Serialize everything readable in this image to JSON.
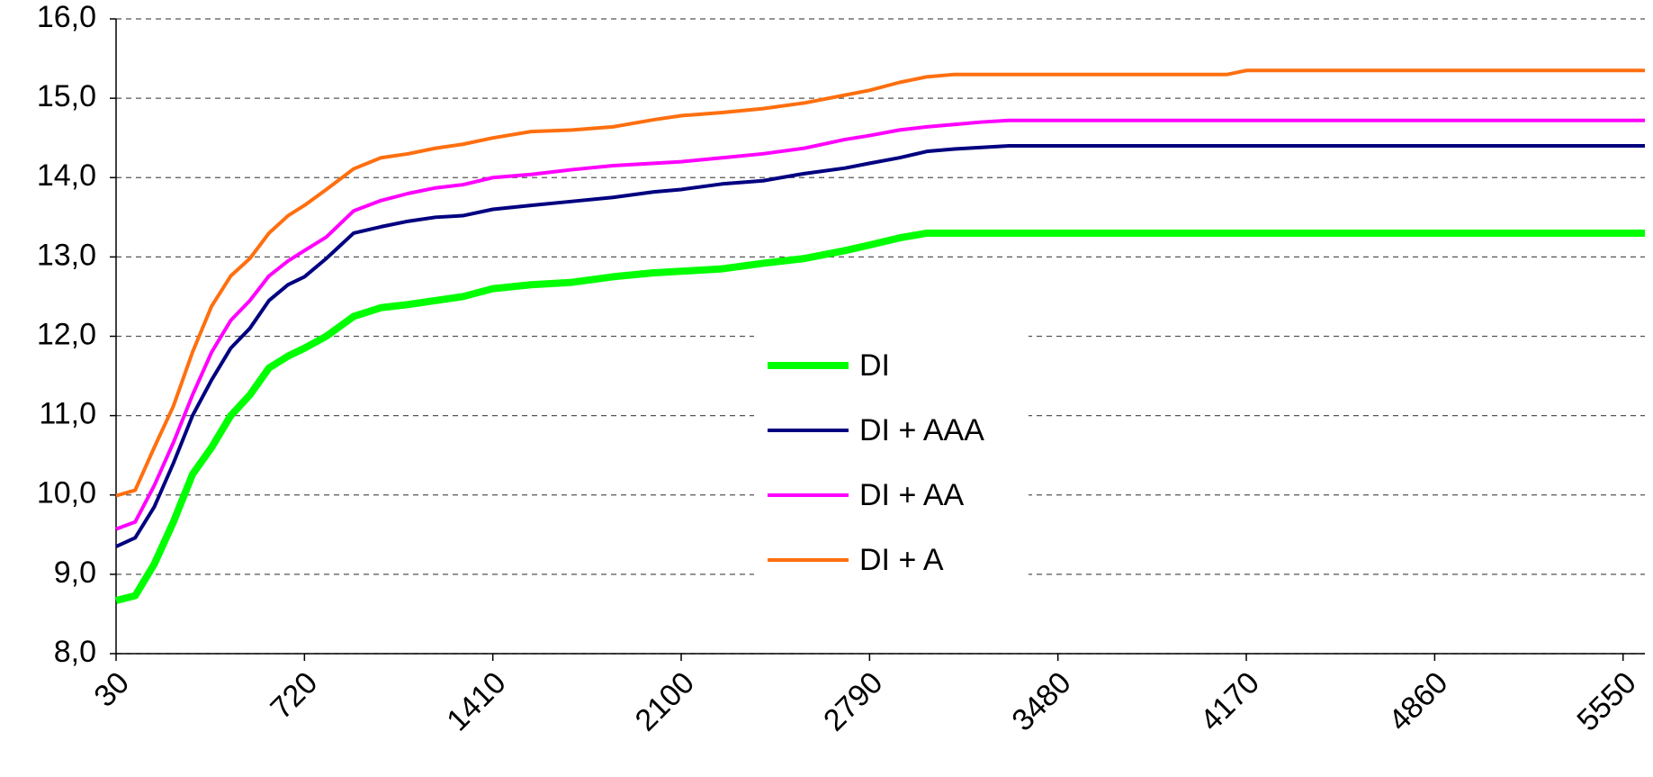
{
  "chart_data": {
    "type": "line",
    "x": [
      30,
      100,
      170,
      240,
      310,
      380,
      450,
      520,
      590,
      660,
      720,
      800,
      900,
      1000,
      1100,
      1200,
      1300,
      1410,
      1550,
      1700,
      1850,
      2000,
      2100,
      2250,
      2400,
      2550,
      2700,
      2790,
      2900,
      3000,
      3100,
      3200,
      3300,
      3480,
      4100,
      4170,
      5630
    ],
    "series": [
      {
        "name": "DI",
        "color": "#00ff00",
        "width": 8,
        "values": [
          8.67,
          8.73,
          9.13,
          9.66,
          10.26,
          10.6,
          11.0,
          11.26,
          11.6,
          11.75,
          11.85,
          12.0,
          12.25,
          12.36,
          12.4,
          12.45,
          12.5,
          12.6,
          12.65,
          12.68,
          12.75,
          12.8,
          12.82,
          12.85,
          12.92,
          12.98,
          13.08,
          13.15,
          13.24,
          13.3,
          13.3,
          13.3,
          13.3,
          13.3,
          13.3,
          13.3,
          13.3
        ]
      },
      {
        "name": "DI + AAA",
        "color": "#000080",
        "width": 4,
        "values": [
          9.35,
          9.46,
          9.85,
          10.4,
          11.0,
          11.45,
          11.85,
          12.1,
          12.45,
          12.65,
          12.75,
          12.98,
          13.3,
          13.38,
          13.45,
          13.5,
          13.52,
          13.6,
          13.65,
          13.7,
          13.75,
          13.82,
          13.85,
          13.92,
          13.96,
          14.05,
          14.12,
          14.18,
          14.25,
          14.33,
          14.36,
          14.38,
          14.4,
          14.4,
          14.4,
          14.4,
          14.4
        ]
      },
      {
        "name": "DI + AA",
        "color": "#ff00ff",
        "width": 4,
        "values": [
          9.57,
          9.66,
          10.12,
          10.66,
          11.26,
          11.8,
          12.2,
          12.45,
          12.76,
          12.95,
          13.08,
          13.25,
          13.58,
          13.71,
          13.8,
          13.87,
          13.91,
          14.0,
          14.04,
          14.1,
          14.15,
          14.18,
          14.2,
          14.25,
          14.3,
          14.37,
          14.48,
          14.53,
          14.6,
          14.64,
          14.67,
          14.7,
          14.72,
          14.72,
          14.72,
          14.72,
          14.72
        ]
      },
      {
        "name": "DI + A",
        "color": "#ff6f0f",
        "width": 4,
        "values": [
          9.99,
          10.06,
          10.6,
          11.12,
          11.8,
          12.38,
          12.76,
          12.98,
          13.3,
          13.52,
          13.65,
          13.85,
          14.11,
          14.25,
          14.3,
          14.37,
          14.42,
          14.5,
          14.58,
          14.6,
          14.64,
          14.73,
          14.78,
          14.82,
          14.87,
          14.94,
          15.04,
          15.1,
          15.2,
          15.27,
          15.3,
          15.3,
          15.3,
          15.3,
          15.3,
          15.35,
          15.35
        ]
      }
    ],
    "xlim": [
      30,
      5630
    ],
    "xticks": [
      30,
      720,
      1410,
      2100,
      2790,
      3480,
      4170,
      4860,
      5550
    ],
    "ylim": [
      8,
      16
    ],
    "yticks": [
      {
        "value": 8,
        "label": "8,0"
      },
      {
        "value": 9,
        "label": "9,0"
      },
      {
        "value": 10,
        "label": "10,0"
      },
      {
        "value": 11,
        "label": "11,0"
      },
      {
        "value": 12,
        "label": "12,0"
      },
      {
        "value": 13,
        "label": "13,0"
      },
      {
        "value": 14,
        "label": "14,0"
      },
      {
        "value": 15,
        "label": "15,0"
      },
      {
        "value": 16,
        "label": "16,0"
      }
    ],
    "grid": true,
    "legend": "center"
  }
}
